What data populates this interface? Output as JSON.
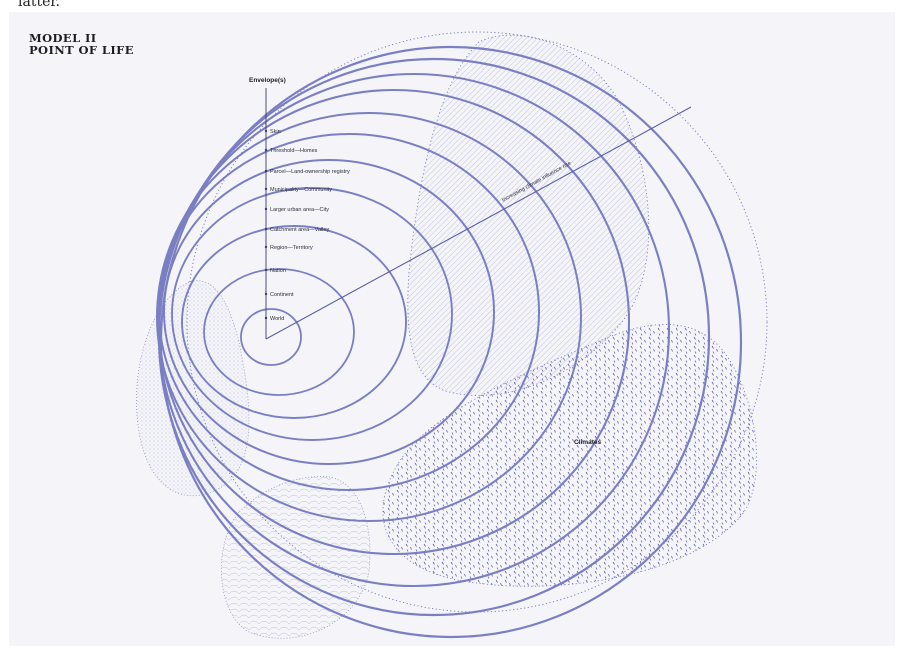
{
  "page_fragment": "latter.",
  "title": {
    "line1": "MODEL II",
    "line2": "POINT OF LIFE"
  },
  "axis": {
    "header": "Envelope(s)",
    "levels": [
      "Skin",
      "Threshold—Homes",
      "Parcel—Land-ownership registry",
      "Municipality—Community",
      "Larger urban area—City",
      "Catchment area—Valley",
      "Region—Territory",
      "Nation",
      "Continent",
      "World"
    ]
  },
  "diagonal_label": "Increasing climate influence rise",
  "climates_label": "Climates",
  "colors": {
    "ring": "#7a7fc4",
    "dots": "#5a5fa8",
    "hatch": "#9ea2c9",
    "background": "#f5f5f9"
  }
}
